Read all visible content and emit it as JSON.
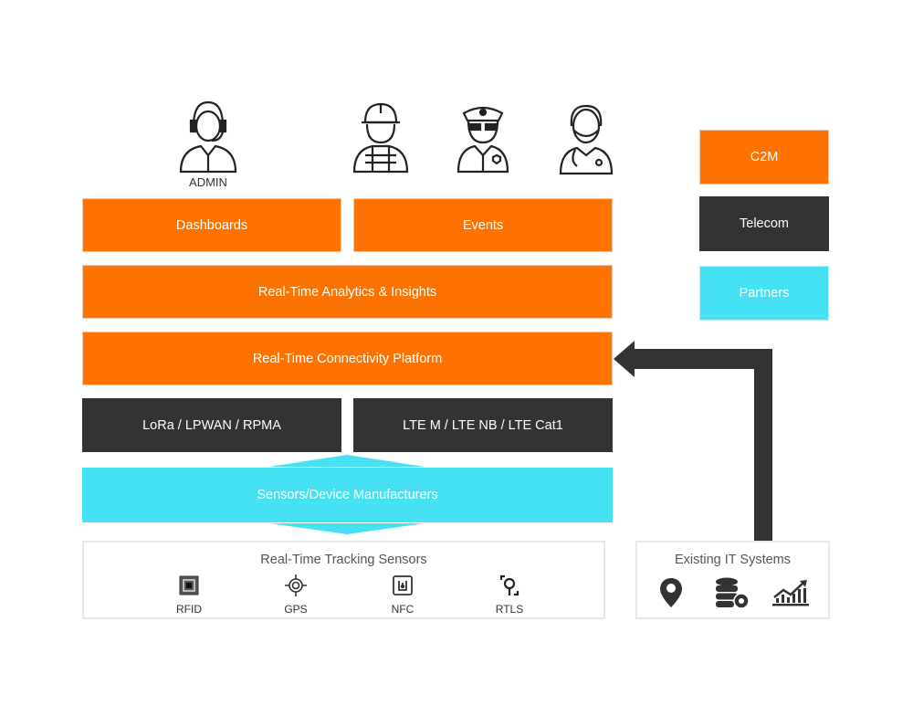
{
  "users": {
    "admin_label": "ADMIN",
    "icons": [
      "admin-headset-person-icon",
      "construction-worker-icon",
      "police-officer-icon",
      "doctor-icon"
    ]
  },
  "layers": {
    "dashboards": "Dashboards",
    "events": "Events",
    "analytics": "Real-Time Analytics & Insights",
    "connectivity": "Real-Time Connectivity Platform",
    "lora": "LoRa / LPWAN / RPMA",
    "lte": "LTE M / LTE NB / LTE Cat1",
    "sensors": "Sensors/Device Manufacturers"
  },
  "side": {
    "c2m": "C2M",
    "telecom": "Telecom",
    "partners": "Partners"
  },
  "tracking": {
    "title": "Real-Time Tracking Sensors",
    "items": [
      {
        "label": "RFID",
        "icon": "rfid-chip-icon"
      },
      {
        "label": "GPS",
        "icon": "gps-target-icon"
      },
      {
        "label": "NFC",
        "icon": "nfc-icon"
      },
      {
        "label": "RTLS",
        "icon": "rtls-icon"
      }
    ]
  },
  "it": {
    "title": "Existing IT Systems",
    "icons": [
      "map-pin-icon",
      "database-gear-icon",
      "chart-growth-icon"
    ]
  },
  "colors": {
    "orange": "#fe7300",
    "dark": "#333333",
    "cyan": "#47e1f4"
  }
}
